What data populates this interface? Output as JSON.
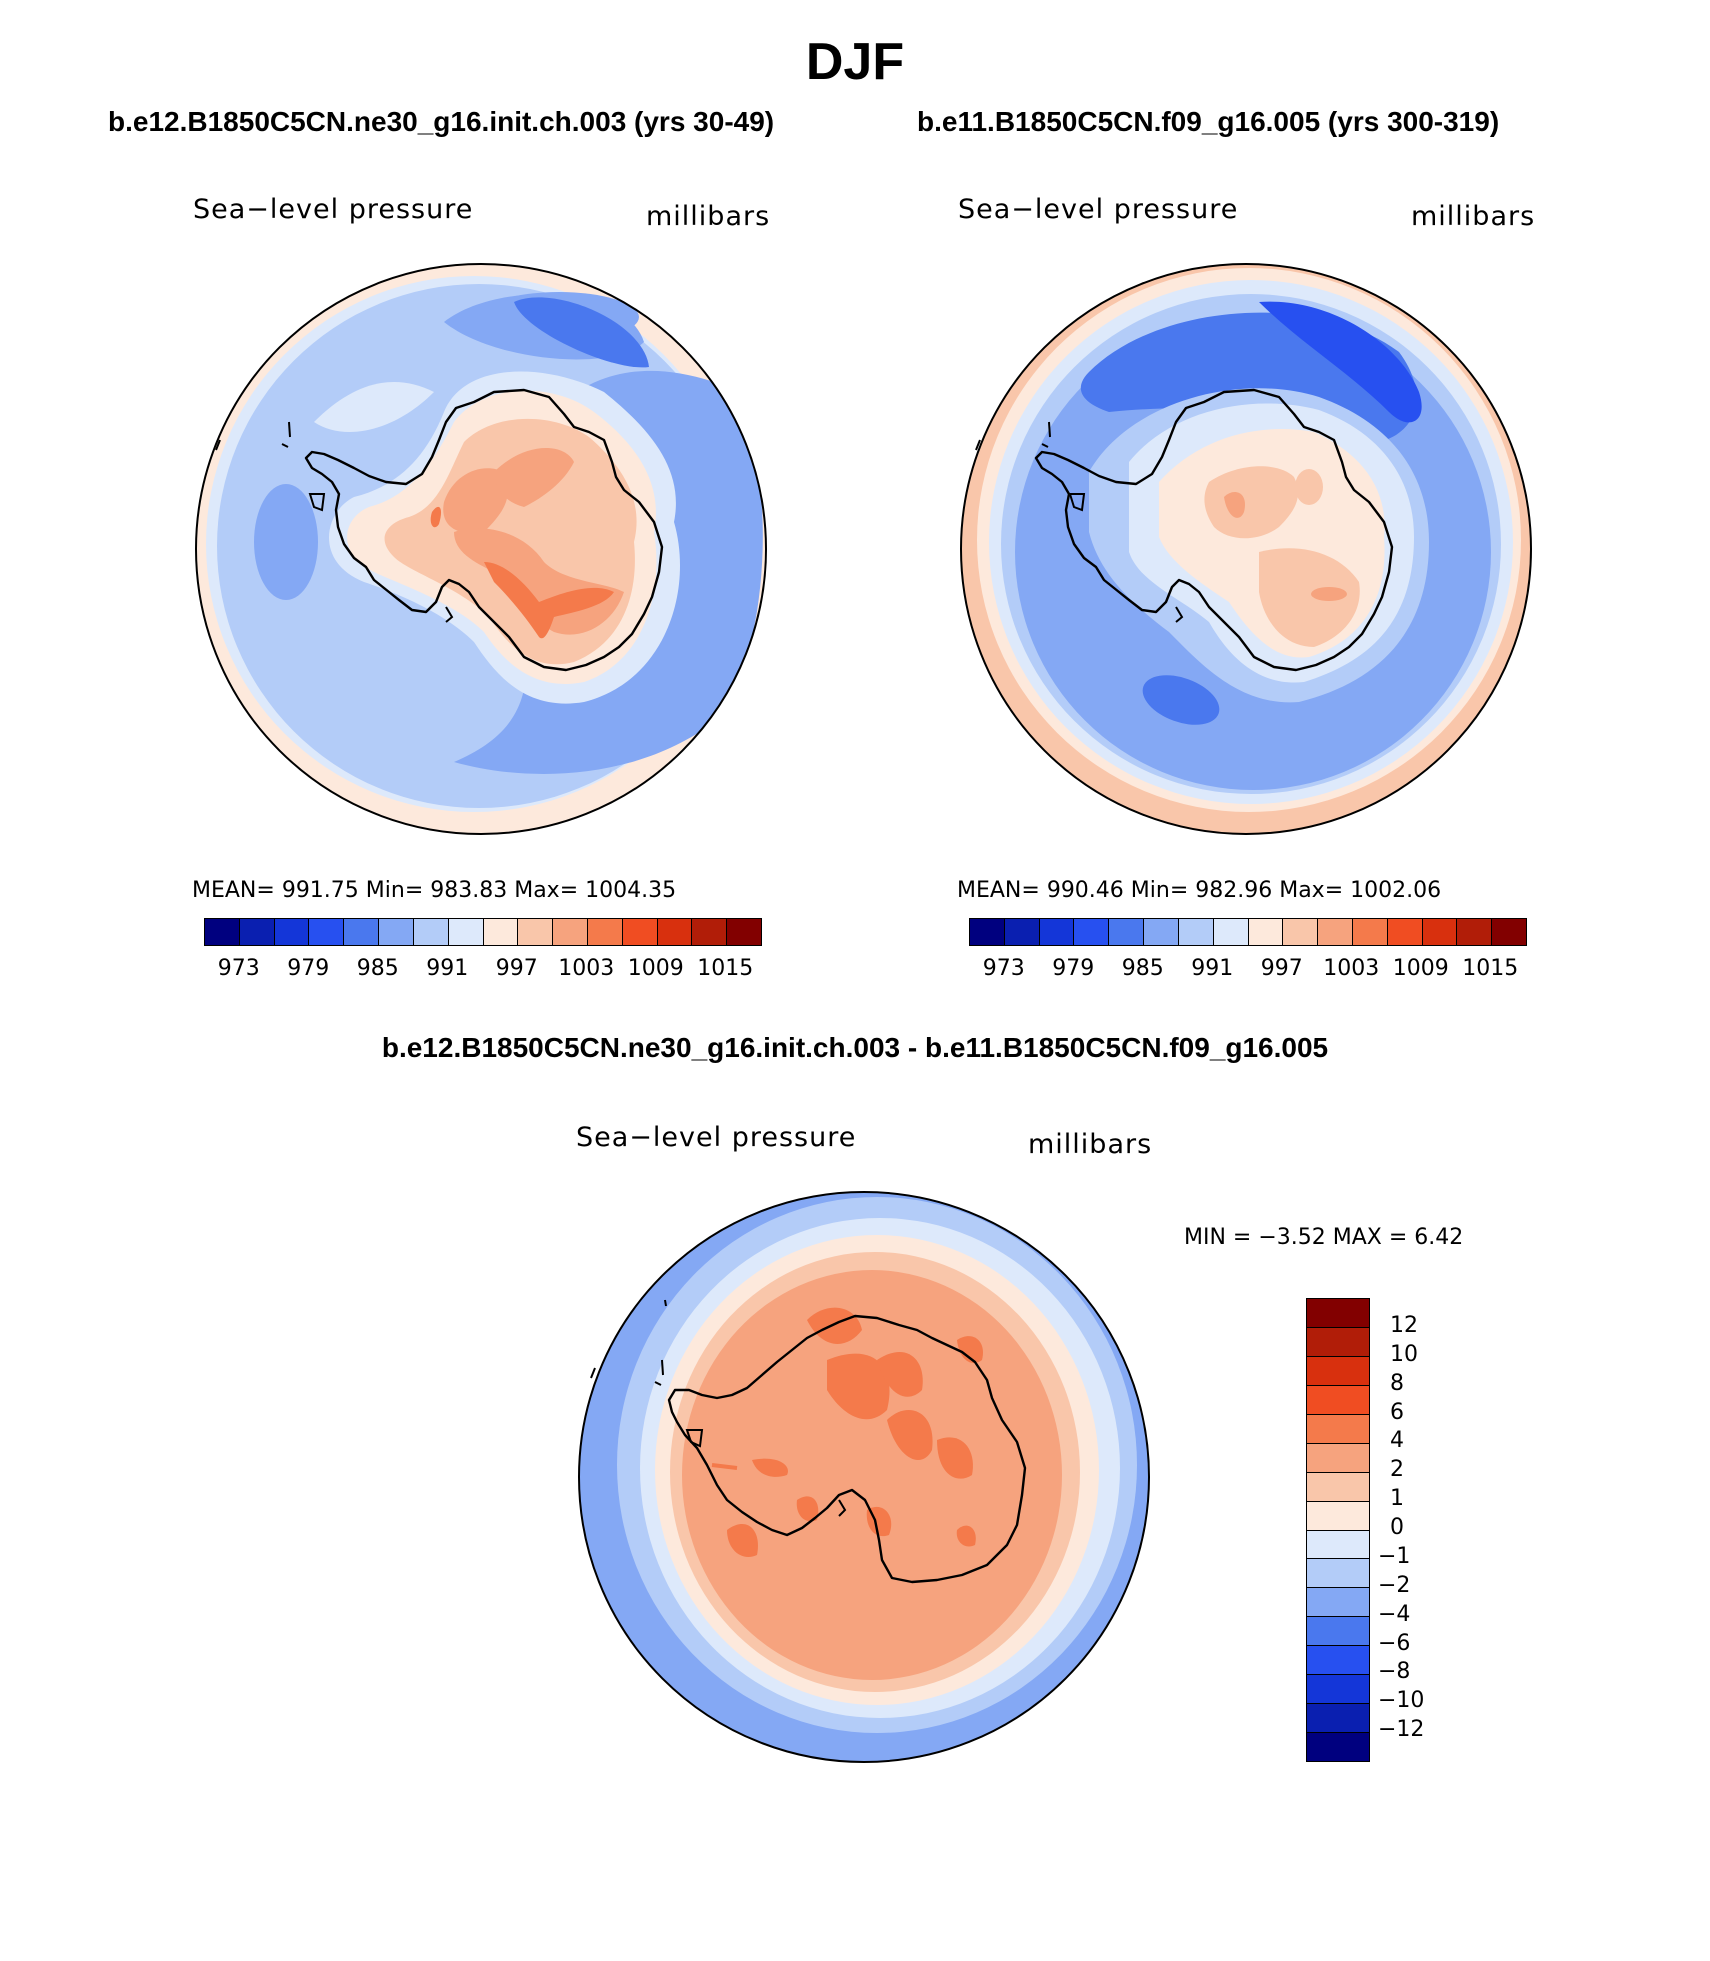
{
  "season_title": "DJF",
  "panels": {
    "left": {
      "run_title": "b.e12.B1850C5CN.ne30_g16.init.ch.003 (yrs 30-49)",
      "variable_label": "Sea−level pressure",
      "units_label": "millibars",
      "stats": "MEAN=  991.75   Min=  983.83   Max=  1004.35",
      "stats_values": {
        "mean": 991.75,
        "min": 983.83,
        "max": 1004.35
      }
    },
    "right": {
      "run_title": "b.e11.B1850C5CN.f09_g16.005 (yrs 300-319)",
      "variable_label": "Sea−level pressure",
      "units_label": "millibars",
      "stats": "MEAN=  990.46   Min=  982.96   Max=  1002.06",
      "stats_values": {
        "mean": 990.46,
        "min": 982.96,
        "max": 1002.06
      }
    },
    "diff": {
      "title": "b.e12.B1850C5CN.ne30_g16.init.ch.003 - b.e11.B1850C5CN.f09_g16.005",
      "variable_label": "Sea−level pressure",
      "units_label": "millibars",
      "minmax": "MIN =    −3.52  MAX =     6.42",
      "minmax_values": {
        "min": -3.52,
        "max": 6.42
      }
    }
  },
  "abs_colorbar": {
    "colors": [
      "#00007f",
      "#0a1fb0",
      "#1436d8",
      "#2750f0",
      "#4a78ee",
      "#84a8f4",
      "#b3ccf8",
      "#dde9fb",
      "#fde9dc",
      "#f9c6aa",
      "#f6a37e",
      "#f47a4b",
      "#f04d22",
      "#d8300e",
      "#b11d08",
      "#820000"
    ],
    "tick_labels": [
      "973",
      "979",
      "985",
      "991",
      "997",
      "1003",
      "1009",
      "1015"
    ]
  },
  "diff_colorbar": {
    "colors_top_to_bottom": [
      "#820000",
      "#b11d08",
      "#d8300e",
      "#f04d22",
      "#f47a4b",
      "#f6a37e",
      "#f9c6aa",
      "#fde9dc",
      "#dde9fb",
      "#b3ccf8",
      "#84a8f4",
      "#4a78ee",
      "#2750f0",
      "#1436d8",
      "#0a1fb0",
      "#00007f"
    ],
    "tick_labels": [
      "12",
      "10",
      "8",
      "6",
      "4",
      "2",
      "1",
      "0",
      "−1",
      "−2",
      "−4",
      "−6",
      "−8",
      "−10",
      "−12"
    ]
  }
}
